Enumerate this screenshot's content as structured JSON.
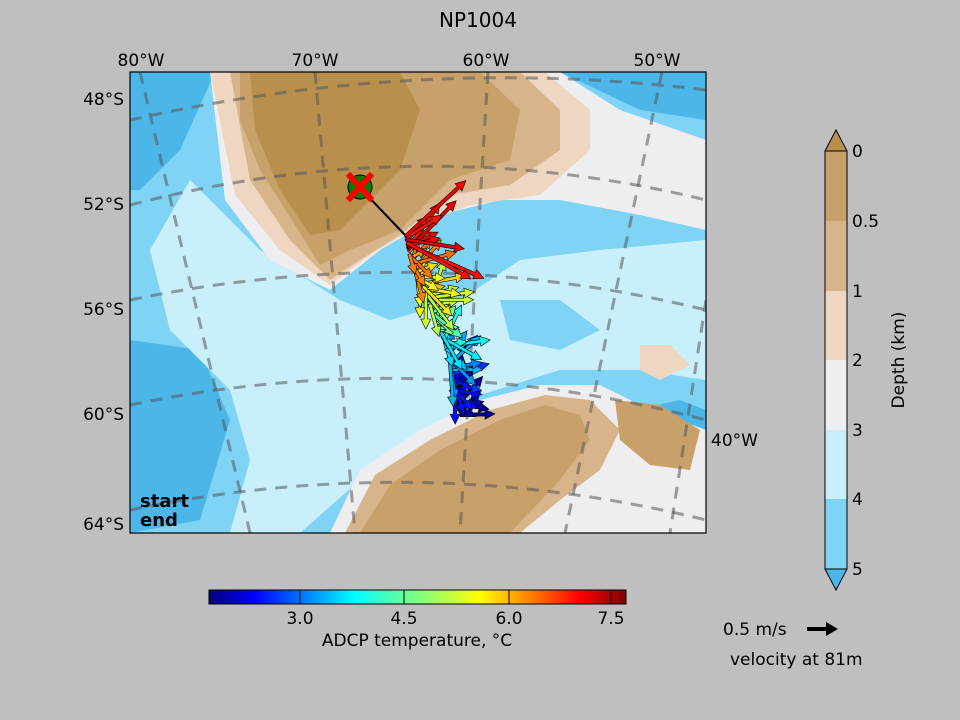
{
  "title": "NP1004",
  "map": {
    "lon_ticks": [
      "80°W",
      "70°W",
      "60°W",
      "50°W"
    ],
    "lon_tick_right": "40°W",
    "lat_ticks": [
      "48°S",
      "52°S",
      "56°S",
      "60°S",
      "64°S"
    ],
    "legend": {
      "start_label": "start",
      "end_label": "end",
      "start_color": "#008000",
      "end_color": "#ff0000"
    }
  },
  "temperature_colorbar": {
    "label": "ADCP temperature, °C",
    "tick_labels": [
      "3.0",
      "4.5",
      "6.0",
      "7.5"
    ],
    "range": [
      1.9,
      7.8
    ],
    "colormap": "jet"
  },
  "depth_colorbar": {
    "label": "Depth (km)",
    "tick_labels": [
      "0",
      "0.5",
      "1",
      "2",
      "3",
      "4",
      "5"
    ],
    "colors": [
      "#b98f4e",
      "#c7a06a",
      "#d8b48a",
      "#eed6c1",
      "#eeeef0",
      "#c9effb",
      "#7fd4f5",
      "#4db6e8"
    ]
  },
  "velocity_key": {
    "speed_label": "0.5 m/s",
    "depth_label": "velocity at 81m"
  }
}
